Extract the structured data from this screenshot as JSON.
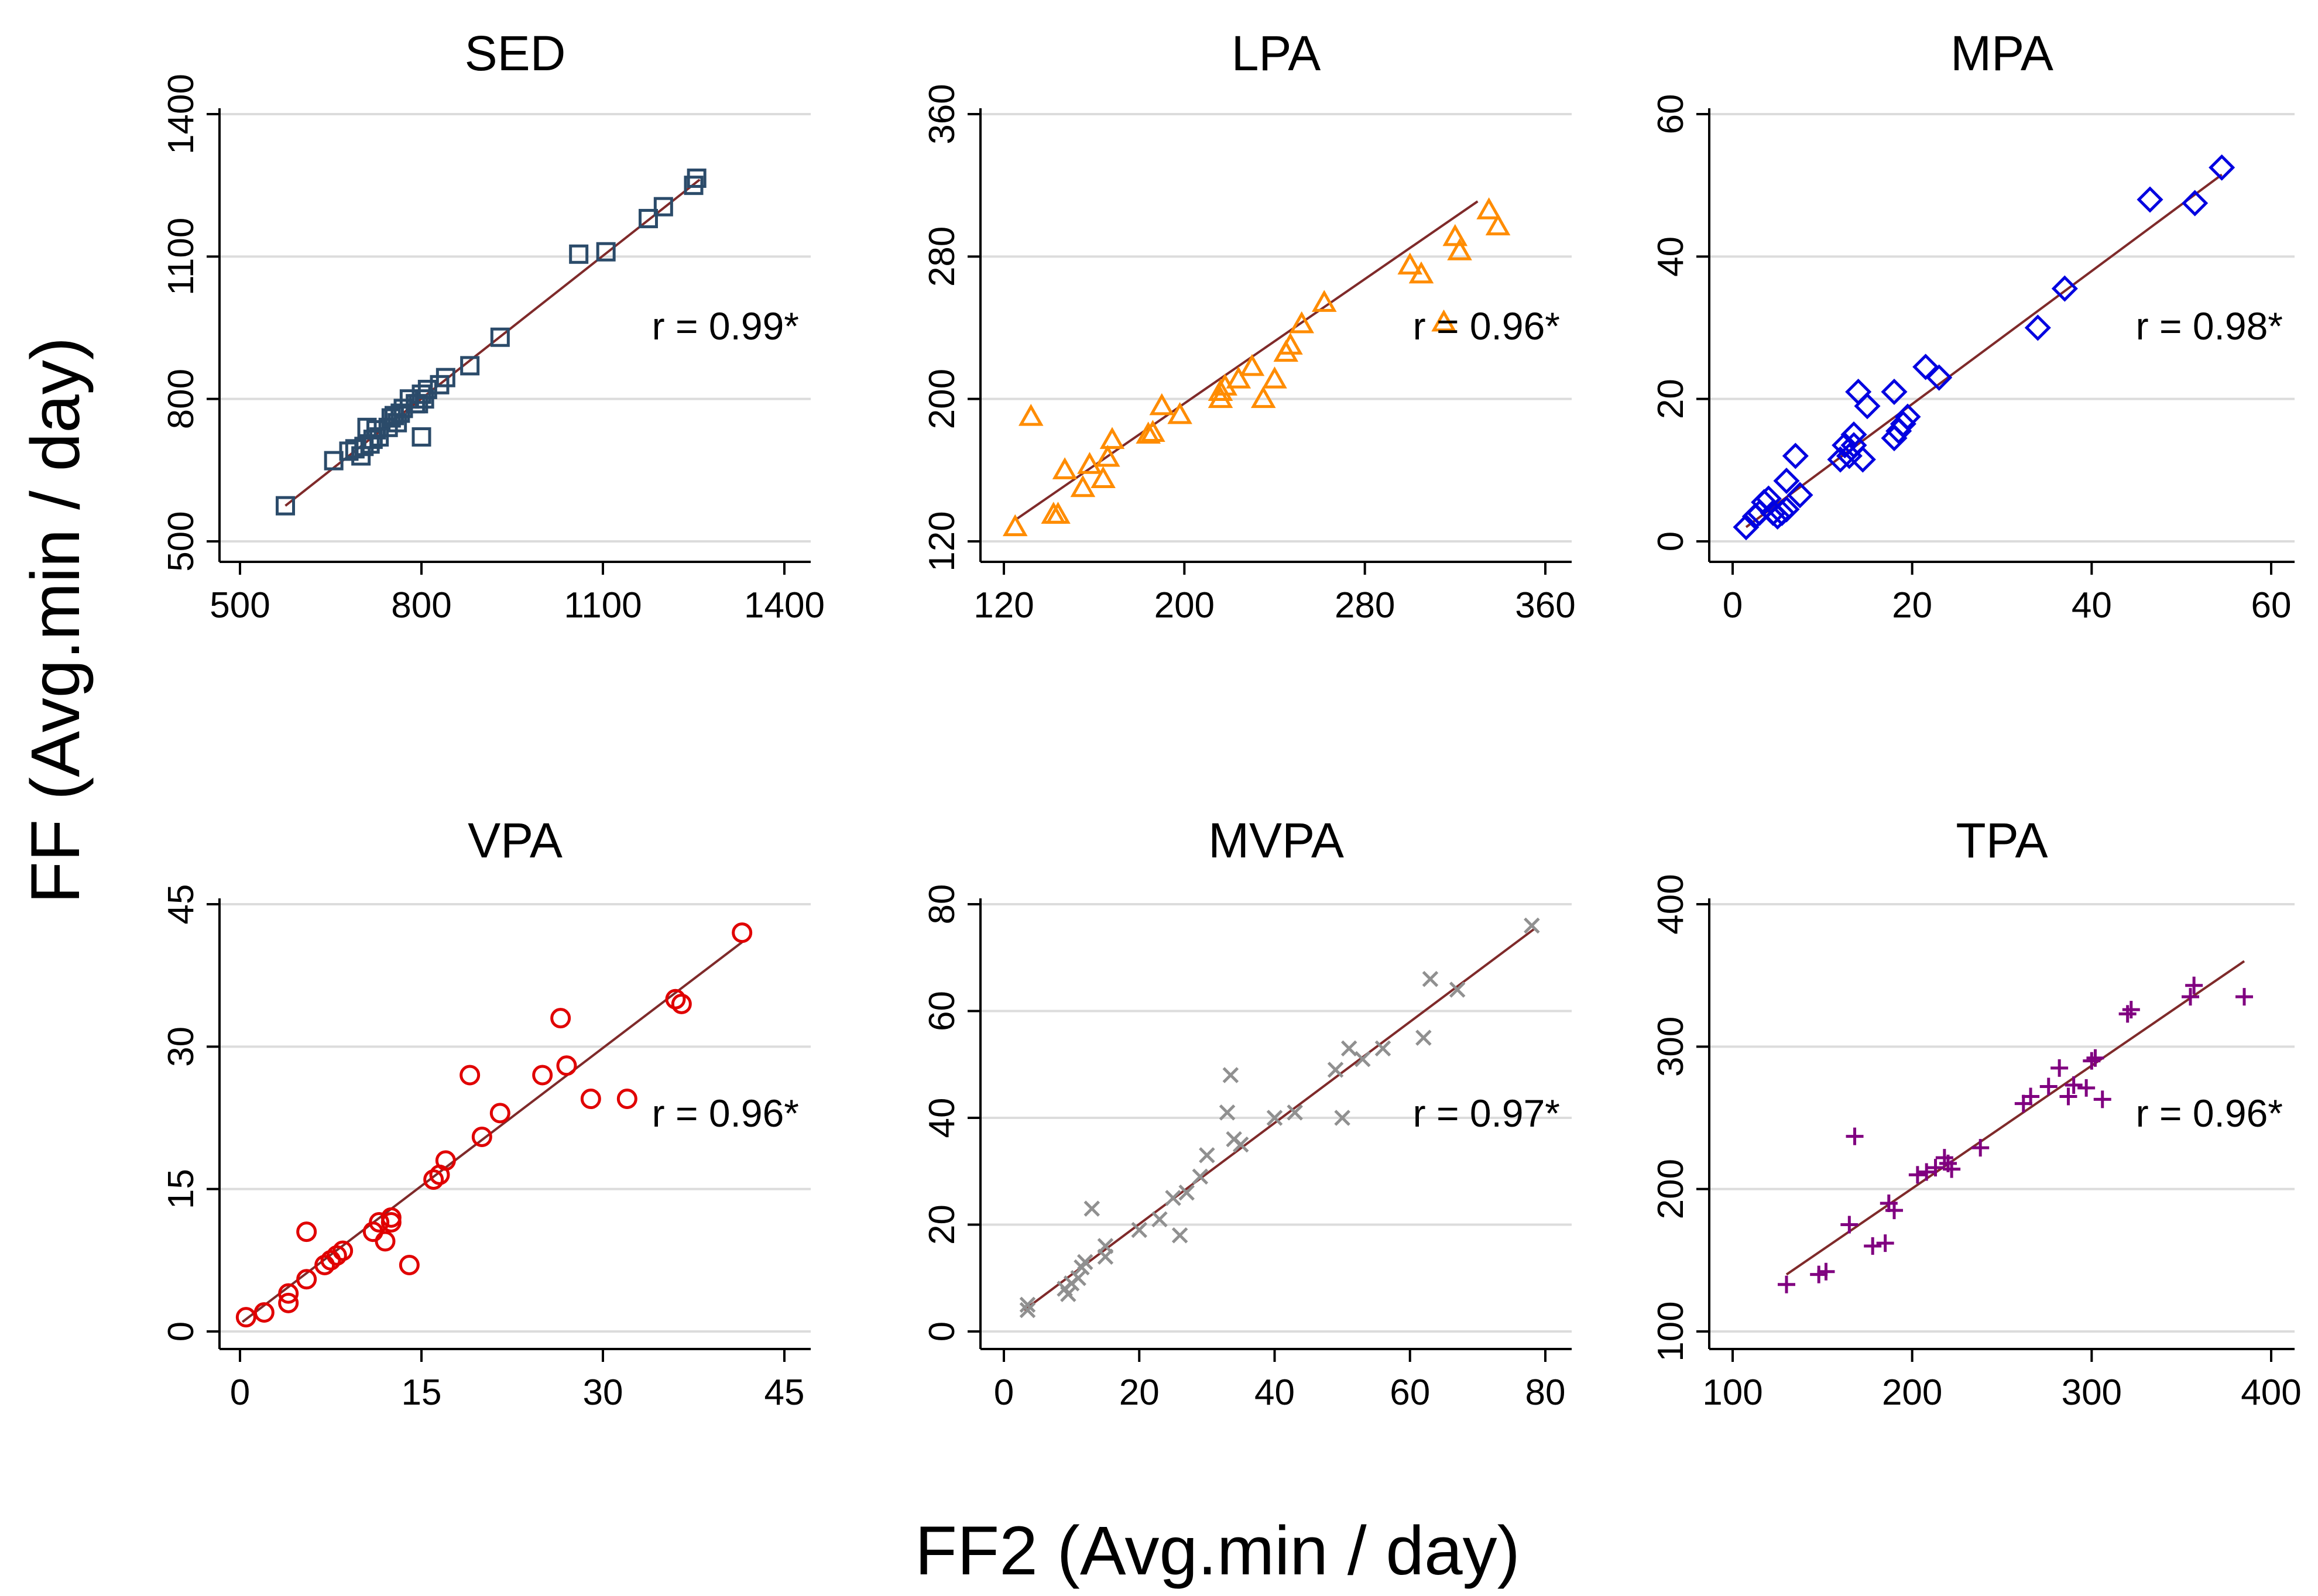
{
  "figure": {
    "x_axis_label": "FF2  (Avg.min / day)",
    "y_axis_label": "FF  (Avg.min / day)"
  },
  "chart_data": [
    {
      "type": "scatter",
      "title": "SED",
      "r_label": "r = 0.99*",
      "marker": "square",
      "color": "#2b4b6a",
      "xlim": [
        500,
        1400
      ],
      "ylim": [
        500,
        1400
      ],
      "xticks": [
        500,
        800,
        1100,
        1400
      ],
      "yticks": [
        500,
        800,
        1100,
        1400
      ],
      "fit": {
        "x": [
          575,
          1260
        ],
        "y": [
          575,
          1262
        ]
      },
      "points": [
        [
          575,
          575
        ],
        [
          655,
          670
        ],
        [
          680,
          690
        ],
        [
          690,
          695
        ],
        [
          700,
          680
        ],
        [
          705,
          700
        ],
        [
          710,
          740
        ],
        [
          715,
          705
        ],
        [
          720,
          715
        ],
        [
          725,
          735
        ],
        [
          730,
          720
        ],
        [
          745,
          740
        ],
        [
          750,
          760
        ],
        [
          755,
          765
        ],
        [
          760,
          750
        ],
        [
          765,
          770
        ],
        [
          770,
          780
        ],
        [
          780,
          800
        ],
        [
          790,
          790
        ],
        [
          795,
          790
        ],
        [
          800,
          810
        ],
        [
          800,
          720
        ],
        [
          805,
          800
        ],
        [
          810,
          820
        ],
        [
          830,
          830
        ],
        [
          840,
          845
        ],
        [
          880,
          870
        ],
        [
          930,
          930
        ],
        [
          1060,
          1105
        ],
        [
          1105,
          1110
        ],
        [
          1175,
          1180
        ],
        [
          1200,
          1205
        ],
        [
          1250,
          1250
        ],
        [
          1255,
          1265
        ]
      ]
    },
    {
      "type": "scatter",
      "title": "LPA",
      "r_label": "r = 0.96*",
      "marker": "triangle",
      "color": "#ff8c00",
      "xlim": [
        120,
        360
      ],
      "ylim": [
        120,
        360
      ],
      "xticks": [
        120,
        200,
        280,
        360
      ],
      "yticks": [
        120,
        200,
        280,
        360
      ],
      "fit": {
        "x": [
          125,
          330
        ],
        "y": [
          132,
          311
        ]
      },
      "points": [
        [
          125,
          128
        ],
        [
          132,
          190
        ],
        [
          142,
          135
        ],
        [
          144,
          135
        ],
        [
          147,
          160
        ],
        [
          155,
          150
        ],
        [
          158,
          163
        ],
        [
          164,
          155
        ],
        [
          166,
          167
        ],
        [
          168,
          177
        ],
        [
          184,
          180
        ],
        [
          186,
          181
        ],
        [
          190,
          196
        ],
        [
          198,
          191
        ],
        [
          216,
          200
        ],
        [
          216,
          204
        ],
        [
          218,
          207
        ],
        [
          224,
          211
        ],
        [
          230,
          218
        ],
        [
          235,
          200
        ],
        [
          240,
          211
        ],
        [
          245,
          226
        ],
        [
          247,
          230
        ],
        [
          252,
          242
        ],
        [
          262,
          254
        ],
        [
          300,
          275
        ],
        [
          305,
          270
        ],
        [
          315,
          243
        ],
        [
          320,
          291
        ],
        [
          322,
          283
        ],
        [
          335,
          306
        ],
        [
          339,
          297
        ]
      ]
    },
    {
      "type": "scatter",
      "title": "MPA",
      "r_label": "r = 0.98*",
      "marker": "diamond",
      "color": "#0000e0",
      "xlim": [
        0,
        60
      ],
      "ylim": [
        0,
        60
      ],
      "xticks": [
        0,
        20,
        40,
        60
      ],
      "yticks": [
        0,
        20,
        40,
        60
      ],
      "fit": {
        "x": [
          1.5,
          54.5
        ],
        "y": [
          2,
          51.5
        ]
      },
      "points": [
        [
          1.5,
          2
        ],
        [
          2.5,
          3.5
        ],
        [
          3,
          4
        ],
        [
          3.5,
          5.5
        ],
        [
          4,
          6
        ],
        [
          4.5,
          4
        ],
        [
          5,
          3.5
        ],
        [
          5.5,
          4
        ],
        [
          6,
          8.5
        ],
        [
          6,
          4.5
        ],
        [
          7,
          12
        ],
        [
          7.5,
          6.5
        ],
        [
          12,
          11.5
        ],
        [
          12.5,
          13.5
        ],
        [
          13,
          12
        ],
        [
          13.5,
          13.5
        ],
        [
          13.5,
          15
        ],
        [
          14,
          21
        ],
        [
          14.5,
          11.5
        ],
        [
          15,
          19
        ],
        [
          18,
          21
        ],
        [
          18,
          14.5
        ],
        [
          18.5,
          15.5
        ],
        [
          19,
          16.5
        ],
        [
          19.5,
          17.5
        ],
        [
          21.5,
          24.5
        ],
        [
          23,
          23
        ],
        [
          34,
          30
        ],
        [
          37,
          35.5
        ],
        [
          46.5,
          48
        ],
        [
          51.5,
          47.5
        ],
        [
          54.5,
          52.5
        ]
      ]
    },
    {
      "type": "scatter",
      "title": "VPA",
      "r_label": "r = 0.96*",
      "marker": "circle",
      "color": "#e00000",
      "xlim": [
        0,
        45
      ],
      "ylim": [
        0,
        45
      ],
      "xticks": [
        0,
        15,
        30,
        45
      ],
      "yticks": [
        0,
        15,
        30,
        45
      ],
      "fit": {
        "x": [
          0.2,
          41.5
        ],
        "y": [
          1,
          41
        ]
      },
      "points": [
        [
          0.5,
          1.5
        ],
        [
          2,
          2
        ],
        [
          4,
          3
        ],
        [
          4,
          4
        ],
        [
          5.5,
          10.5
        ],
        [
          5.5,
          5.5
        ],
        [
          7,
          7
        ],
        [
          7.5,
          7.5
        ],
        [
          8,
          8
        ],
        [
          8.5,
          8.5
        ],
        [
          11,
          10.5
        ],
        [
          11.5,
          11.5
        ],
        [
          12,
          9.5
        ],
        [
          12.5,
          11.5
        ],
        [
          12.5,
          12
        ],
        [
          14,
          7
        ],
        [
          16,
          16
        ],
        [
          16.5,
          16.5
        ],
        [
          17,
          18
        ],
        [
          19,
          27
        ],
        [
          20,
          20.5
        ],
        [
          21.5,
          23
        ],
        [
          25,
          27
        ],
        [
          26.5,
          33
        ],
        [
          27,
          28
        ],
        [
          29,
          24.5
        ],
        [
          32,
          24.5
        ],
        [
          36,
          35
        ],
        [
          36.5,
          34.5
        ],
        [
          41.5,
          42
        ]
      ]
    },
    {
      "type": "scatter",
      "title": "MVPA",
      "r_label": "r = 0.97*",
      "marker": "x",
      "color": "#909090",
      "xlim": [
        0,
        80
      ],
      "ylim": [
        0,
        80
      ],
      "xticks": [
        0,
        20,
        40,
        60,
        80
      ],
      "yticks": [
        0,
        20,
        40,
        60,
        80
      ],
      "fit": {
        "x": [
          3,
          78.5
        ],
        "y": [
          4,
          75.5
        ]
      },
      "points": [
        [
          3.5,
          4
        ],
        [
          3.5,
          5
        ],
        [
          9,
          8
        ],
        [
          9.5,
          7
        ],
        [
          10,
          9
        ],
        [
          11,
          10
        ],
        [
          11.5,
          12
        ],
        [
          12,
          13
        ],
        [
          13,
          23
        ],
        [
          15,
          14
        ],
        [
          15,
          16
        ],
        [
          20,
          19
        ],
        [
          23,
          21
        ],
        [
          25,
          25
        ],
        [
          26,
          18
        ],
        [
          27,
          26
        ],
        [
          29,
          29
        ],
        [
          30,
          33
        ],
        [
          33,
          41
        ],
        [
          33.5,
          48
        ],
        [
          34,
          36
        ],
        [
          35,
          35
        ],
        [
          40,
          40
        ],
        [
          43,
          41
        ],
        [
          49,
          49
        ],
        [
          50,
          40
        ],
        [
          51,
          53
        ],
        [
          53,
          51
        ],
        [
          56,
          53
        ],
        [
          62,
          55
        ],
        [
          63,
          66
        ],
        [
          67,
          64
        ],
        [
          78,
          76
        ]
      ]
    },
    {
      "type": "scatter",
      "title": "TPA",
      "r_label": "r = 0.96*",
      "marker": "plus",
      "color": "#800080",
      "xlim": [
        100,
        400
      ],
      "ylim": [
        100,
        400
      ],
      "xticks": [
        100,
        200,
        300,
        400
      ],
      "yticks": [
        100,
        200,
        300,
        400
      ],
      "fit": {
        "x": [
          130,
          385
        ],
        "y": [
          140,
          360
        ]
      },
      "points": [
        [
          130,
          133
        ],
        [
          148,
          140
        ],
        [
          152,
          142
        ],
        [
          165,
          175
        ],
        [
          168,
          237
        ],
        [
          178,
          160
        ],
        [
          185,
          162
        ],
        [
          187,
          190
        ],
        [
          190,
          185
        ],
        [
          203,
          210
        ],
        [
          208,
          212
        ],
        [
          213,
          215
        ],
        [
          218,
          222
        ],
        [
          220,
          218
        ],
        [
          222,
          214
        ],
        [
          238,
          229
        ],
        [
          262,
          260
        ],
        [
          266,
          265
        ],
        [
          276,
          272
        ],
        [
          282,
          285
        ],
        [
          287,
          265
        ],
        [
          290,
          273
        ],
        [
          297,
          271
        ],
        [
          300,
          290
        ],
        [
          302,
          292
        ],
        [
          306,
          263
        ],
        [
          320,
          323
        ],
        [
          322,
          326
        ],
        [
          355,
          335
        ],
        [
          357,
          343
        ],
        [
          385,
          335
        ]
      ]
    }
  ]
}
